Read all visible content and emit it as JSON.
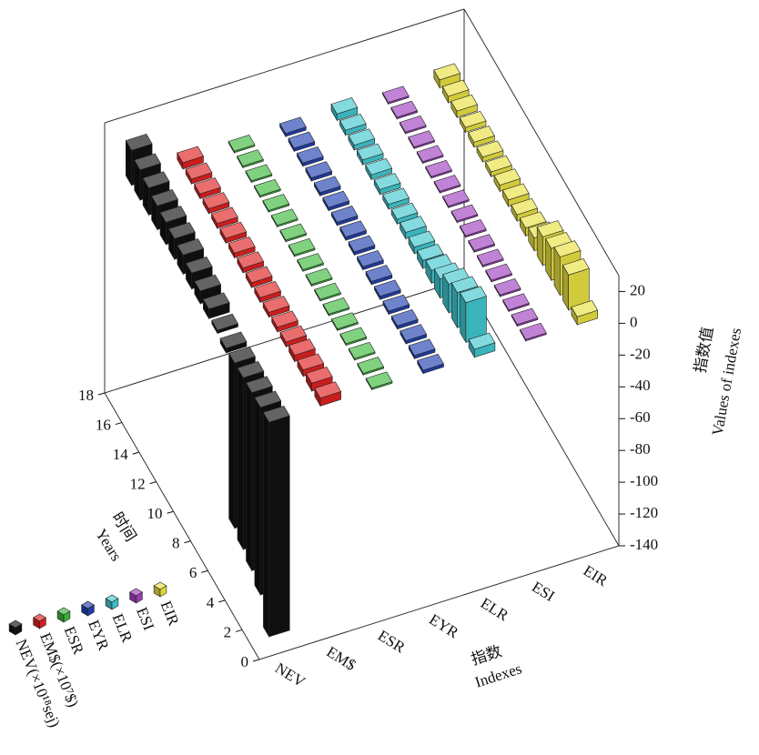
{
  "chart_data": {
    "type": "bar3d",
    "categories": [
      "NEV",
      "EM$",
      "ESR",
      "EYR",
      "ELR",
      "ESI",
      "EIR"
    ],
    "x": [
      1,
      2,
      3,
      4,
      5,
      6,
      7,
      8,
      9,
      10,
      11,
      12,
      13,
      14,
      15,
      16,
      17
    ],
    "xlim": [
      0,
      18
    ],
    "xticks": [
      0,
      2,
      4,
      6,
      8,
      10,
      12,
      14,
      16,
      18
    ],
    "ylim": [
      -140,
      30
    ],
    "yticks": [
      -140,
      -120,
      -100,
      -80,
      -60,
      -40,
      -20,
      0,
      20
    ],
    "x_label": [
      "时间",
      "Years"
    ],
    "category_label": [
      "指数",
      "Indexes"
    ],
    "y_label": [
      "指数值",
      "Values of indexes"
    ],
    "series": [
      {
        "name": "NEV(×10¹⁸sej)",
        "color": "#111111",
        "values": [
          -135,
          -118,
          -112,
          -108,
          -104,
          -3,
          2,
          6,
          8,
          10,
          12,
          13,
          14,
          15,
          17,
          19,
          22
        ]
      },
      {
        "name": "EM$(×10⁷$)",
        "color": "#e02020",
        "values": [
          5,
          5,
          4,
          4,
          3,
          3,
          3,
          3,
          3,
          3,
          3,
          3,
          3,
          3,
          3,
          3,
          4
        ]
      },
      {
        "name": "ESR",
        "color": "#3cb83c",
        "values": [
          1,
          1,
          1,
          1,
          1,
          1,
          1,
          1,
          1,
          1,
          1,
          1,
          1,
          1,
          1,
          1,
          1
        ]
      },
      {
        "name": "EYR",
        "color": "#2040b0",
        "values": [
          2,
          2,
          2,
          2,
          2,
          2,
          2,
          2,
          2,
          2,
          2,
          2,
          2,
          2,
          2,
          2,
          2
        ]
      },
      {
        "name": "ELR",
        "color": "#40c8d0",
        "values": [
          5,
          25,
          22,
          18,
          12,
          8,
          5,
          4,
          4,
          3,
          3,
          3,
          3,
          3,
          3,
          3,
          4
        ]
      },
      {
        "name": "ESI",
        "color": "#a040c0",
        "values": [
          1,
          1,
          1,
          1,
          1,
          1,
          1,
          1,
          1,
          1,
          1,
          1,
          1,
          1,
          1,
          1,
          1
        ]
      },
      {
        "name": "EIR",
        "color": "#e8e040",
        "values": [
          5,
          22,
          24,
          20,
          18,
          8,
          5,
          4,
          4,
          4,
          3,
          3,
          3,
          3,
          4,
          4,
          5
        ]
      }
    ]
  }
}
